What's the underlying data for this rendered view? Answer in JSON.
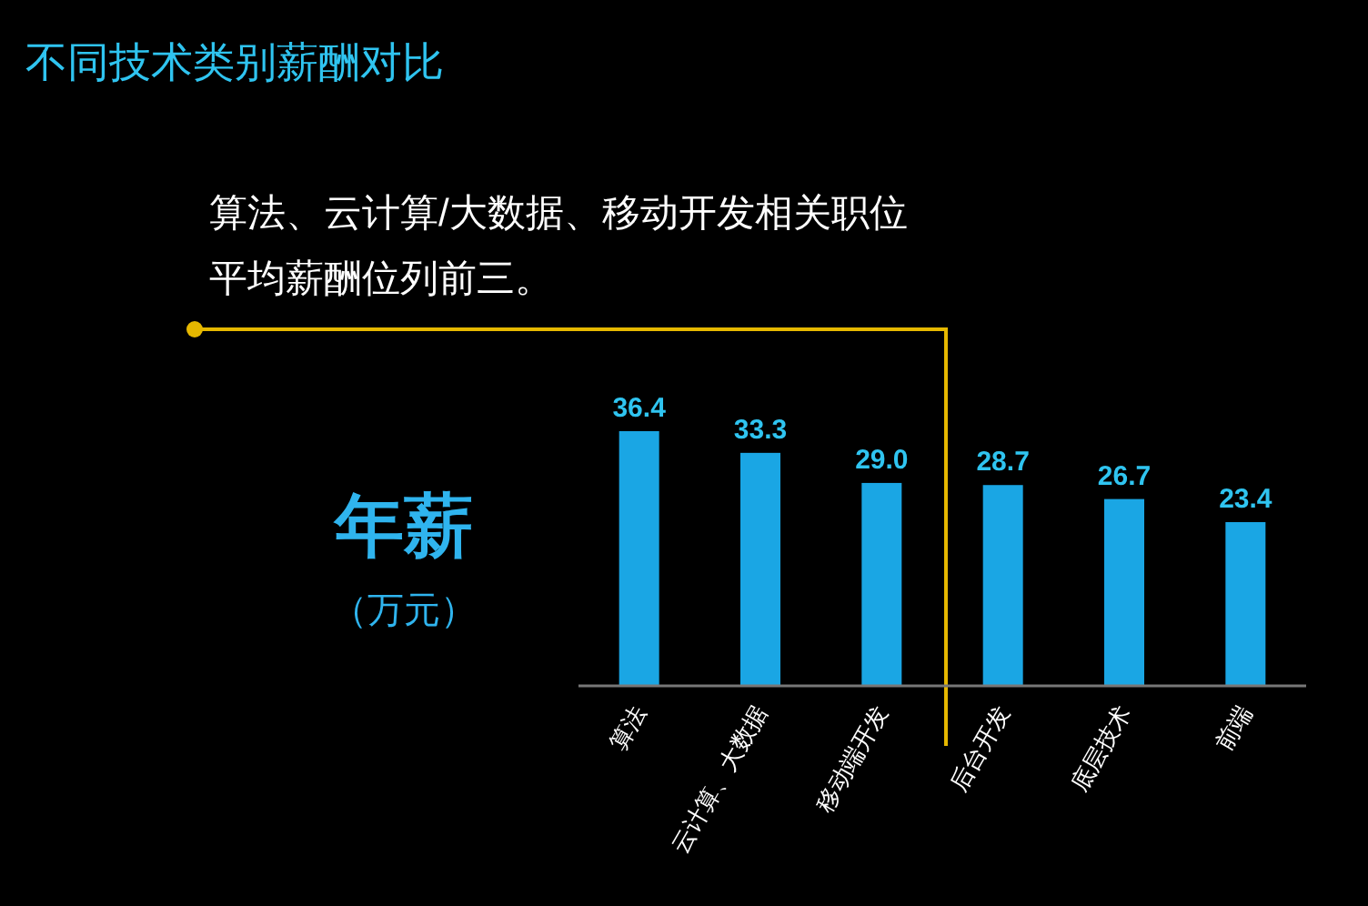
{
  "chart_data": {
    "type": "bar",
    "title": "不同技术类别薪酬对比",
    "ylabel": "年薪",
    "annotations": [
      "算法、云计算/大数据、移动开发相关职位",
      "平均薪酬位列前三。",
      "（万元）"
    ],
    "categories": [
      "算法",
      "云计算、大数据",
      "移动端开发",
      "后台开发",
      "底层技术",
      "前端"
    ],
    "values": [
      36.4,
      33.3,
      29.0,
      28.7,
      26.7,
      23.4
    ],
    "value_labels": [
      "36.4",
      "33.3",
      "29.0",
      "28.7",
      "26.7",
      "23.4"
    ],
    "color": "#1aa6e4"
  }
}
